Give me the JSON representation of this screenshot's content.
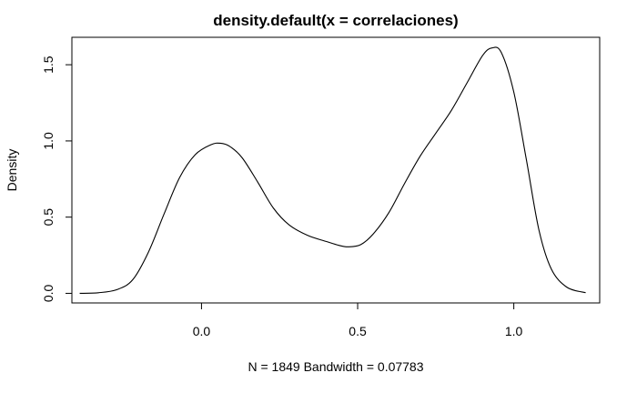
{
  "chart_data": {
    "type": "line",
    "title": "density.default(x = correlaciones)",
    "xlabel": "N = 1849   Bandwidth = 0.07783",
    "ylabel": "Density",
    "xlim": [
      -0.415,
      1.275
    ],
    "ylim": [
      -0.063,
      1.68
    ],
    "x_ticks": [
      0.0,
      0.5,
      1.0
    ],
    "x_tick_labels": [
      "0.0",
      "0.5",
      "1.0"
    ],
    "y_ticks": [
      0.0,
      0.5,
      1.0,
      1.5
    ],
    "y_tick_labels": [
      "0.0",
      "0.5",
      "1.0",
      "1.5"
    ],
    "grid": false,
    "legend": "none",
    "line_color": "#000000",
    "series": [
      {
        "x": [
          -0.39,
          -0.33,
          -0.27,
          -0.22,
          -0.17,
          -0.12,
          -0.07,
          -0.02,
          0.03,
          0.06,
          0.09,
          0.13,
          0.18,
          0.23,
          0.28,
          0.34,
          0.4,
          0.44,
          0.47,
          0.51,
          0.55,
          0.6,
          0.65,
          0.7,
          0.75,
          0.8,
          0.85,
          0.9,
          0.93,
          0.96,
          1.0,
          1.04,
          1.08,
          1.12,
          1.17,
          1.23
        ],
        "y": [
          0.0,
          0.004,
          0.025,
          0.09,
          0.27,
          0.52,
          0.76,
          0.91,
          0.975,
          0.985,
          0.965,
          0.89,
          0.73,
          0.56,
          0.45,
          0.38,
          0.34,
          0.315,
          0.305,
          0.32,
          0.39,
          0.53,
          0.72,
          0.9,
          1.05,
          1.2,
          1.38,
          1.56,
          1.61,
          1.58,
          1.32,
          0.88,
          0.42,
          0.16,
          0.04,
          0.004
        ]
      }
    ]
  }
}
